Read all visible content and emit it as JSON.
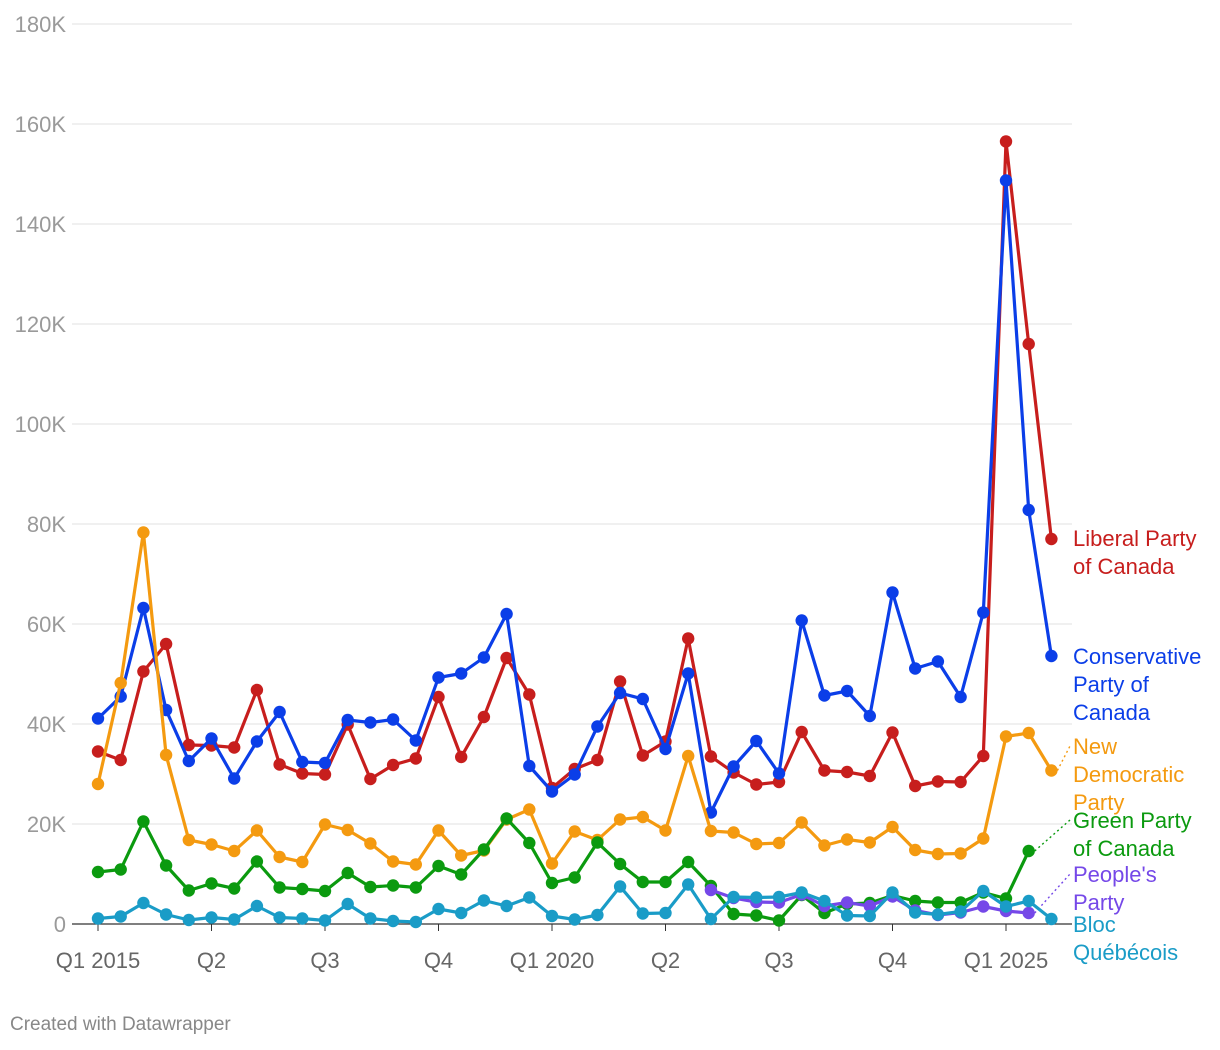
{
  "chart_data": {
    "type": "line",
    "title": "",
    "xlabel": "",
    "ylabel": "",
    "ylim": [
      0,
      180000
    ],
    "grid": true,
    "y_ticks": [
      {
        "value": 0,
        "label": "0"
      },
      {
        "value": 20000,
        "label": "20K"
      },
      {
        "value": 40000,
        "label": "40K"
      },
      {
        "value": 60000,
        "label": "60K"
      },
      {
        "value": 80000,
        "label": "80K"
      },
      {
        "value": 100000,
        "label": "100K"
      },
      {
        "value": 120000,
        "label": "120K"
      },
      {
        "value": 140000,
        "label": "140K"
      },
      {
        "value": 160000,
        "label": "160K"
      },
      {
        "value": 180000,
        "label": "180K"
      }
    ],
    "x_ticks": [
      {
        "index": 0,
        "label": "Q1 2015"
      },
      {
        "index": 5,
        "label": "Q2"
      },
      {
        "index": 10,
        "label": "Q3"
      },
      {
        "index": 15,
        "label": "Q4"
      },
      {
        "index": 20,
        "label": "Q1 2020"
      },
      {
        "index": 25,
        "label": "Q2"
      },
      {
        "index": 30,
        "label": "Q3"
      },
      {
        "index": 35,
        "label": "Q4"
      },
      {
        "index": 40,
        "label": "Q1 2025"
      }
    ],
    "series": [
      {
        "name": "Liberal Party of Canada",
        "label_lines": [
          "Liberal Party",
          "of Canada"
        ],
        "color": "#c71e1d",
        "start_index": 0,
        "values": [
          34500,
          32800,
          50500,
          56000,
          35800,
          35700,
          35300,
          46800,
          31900,
          30100,
          29900,
          39900,
          29000,
          31800,
          33100,
          45400,
          33400,
          41400,
          53200,
          45900,
          27200,
          31000,
          32800,
          48500,
          33700,
          36500,
          57100,
          33500,
          30300,
          27900,
          28400,
          38400,
          30700,
          30400,
          29600,
          38300,
          27600,
          28500,
          28400,
          33600,
          156500,
          116000,
          77000
        ]
      },
      {
        "name": "Conservative Party of Canada",
        "label_lines": [
          "Conservative",
          "Party of",
          "Canada"
        ],
        "color": "#0b3ee8",
        "start_index": 0,
        "values": [
          41100,
          45500,
          63200,
          42800,
          32600,
          37100,
          29100,
          36500,
          42400,
          32400,
          32200,
          40800,
          40300,
          40900,
          36700,
          49300,
          50100,
          53300,
          62000,
          31600,
          26500,
          29900,
          39500,
          46200,
          45000,
          35000,
          50100,
          22300,
          31500,
          36600,
          30100,
          60700,
          45700,
          46600,
          41600,
          66300,
          51100,
          52500,
          45400,
          62300,
          148700,
          82800,
          53600
        ]
      },
      {
        "name": "New Democratic Party",
        "label_lines": [
          "New",
          "Democratic",
          "Party"
        ],
        "color": "#f49a10",
        "start_index": 0,
        "values": [
          28000,
          48200,
          78300,
          33800,
          16800,
          15900,
          14600,
          18700,
          13400,
          12400,
          19900,
          18800,
          16100,
          12500,
          11900,
          18700,
          13700,
          14700,
          20900,
          22900,
          12100,
          18500,
          16800,
          20900,
          21400,
          18700,
          33600,
          18600,
          18300,
          16000,
          16200,
          20300,
          15700,
          16900,
          16300,
          19400,
          14800,
          14000,
          14100,
          17100,
          37500,
          38200,
          30700
        ]
      },
      {
        "name": "Green Party of Canada",
        "label_lines": [
          "Green Party",
          "of Canada"
        ],
        "color": "#0b9a0f",
        "start_index": 0,
        "values": [
          10400,
          10900,
          20500,
          11700,
          6700,
          8100,
          7100,
          12500,
          7300,
          7000,
          6600,
          10200,
          7400,
          7700,
          7300,
          11600,
          9900,
          14900,
          21100,
          16200,
          8200,
          9300,
          16300,
          12000,
          8400,
          8400,
          12400,
          7600,
          2000,
          1700,
          700,
          5800,
          2200,
          4000,
          4200,
          5700,
          4600,
          4300,
          4300,
          6300,
          5100,
          14600
        ]
      },
      {
        "name": "People's Party",
        "label_lines": [
          "People's",
          "Party"
        ],
        "color": "#7548e8",
        "start_index": 27,
        "values": [
          6800,
          5200,
          4400,
          4300,
          5900,
          3600,
          4300,
          3600,
          5500,
          2700,
          1800,
          2300,
          3500,
          2600,
          2200
        ]
      },
      {
        "name": "Bloc Québécois",
        "label_lines": [
          "Bloc",
          "Québécois"
        ],
        "color": "#1a9cc7",
        "start_index": 0,
        "values": [
          1100,
          1500,
          4200,
          1900,
          800,
          1300,
          900,
          3600,
          1300,
          1100,
          700,
          4000,
          1100,
          600,
          400,
          3000,
          2200,
          4700,
          3600,
          5300,
          1600,
          900,
          1800,
          7500,
          2100,
          2200,
          7900,
          1000,
          5400,
          5300,
          5400,
          6300,
          4600,
          1700,
          1600,
          6300,
          2300,
          1900,
          2500,
          6600,
          3500,
          4600,
          1000
        ]
      }
    ]
  },
  "footer": {
    "credit": "Created with Datawrapper"
  }
}
